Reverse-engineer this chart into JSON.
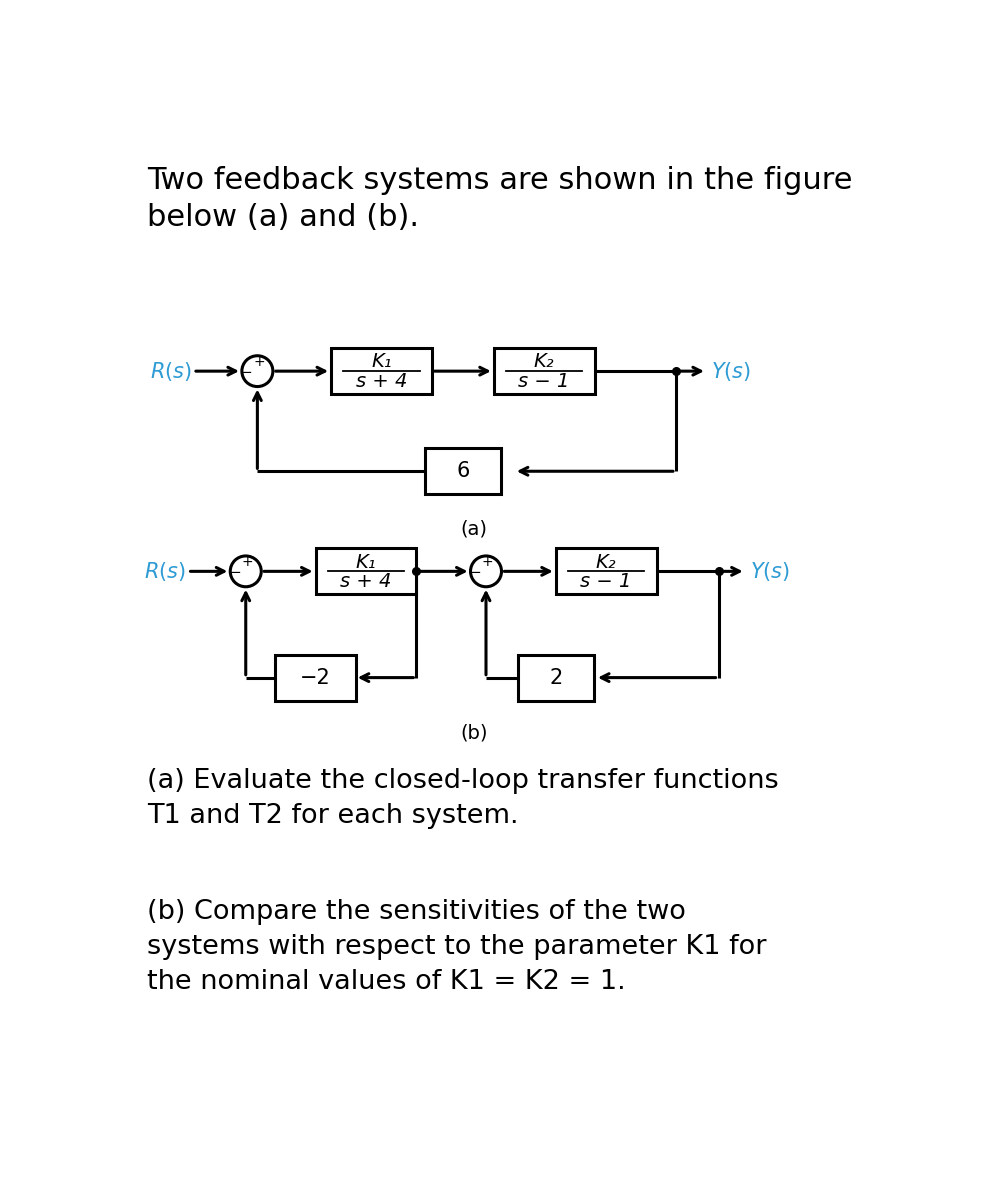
{
  "title_text": "Two feedback systems are shown in the figure\nbelow (a) and (b).",
  "title_fontsize": 22,
  "cyan_color": "#2E9BD4",
  "black_color": "#000000",
  "bg_color": "#FFFFFF",
  "label_a": "(a)",
  "label_b": "(b)",
  "question_a": "(a) Evaluate the closed-loop transfer functions\nT1 and T2 for each system.",
  "question_b": "(b) Compare the sensitivities of the two\nsystems with respect to the parameter K1 for\nthe nominal values of K1 = K2 = 1.",
  "question_fontsize": 19.5
}
